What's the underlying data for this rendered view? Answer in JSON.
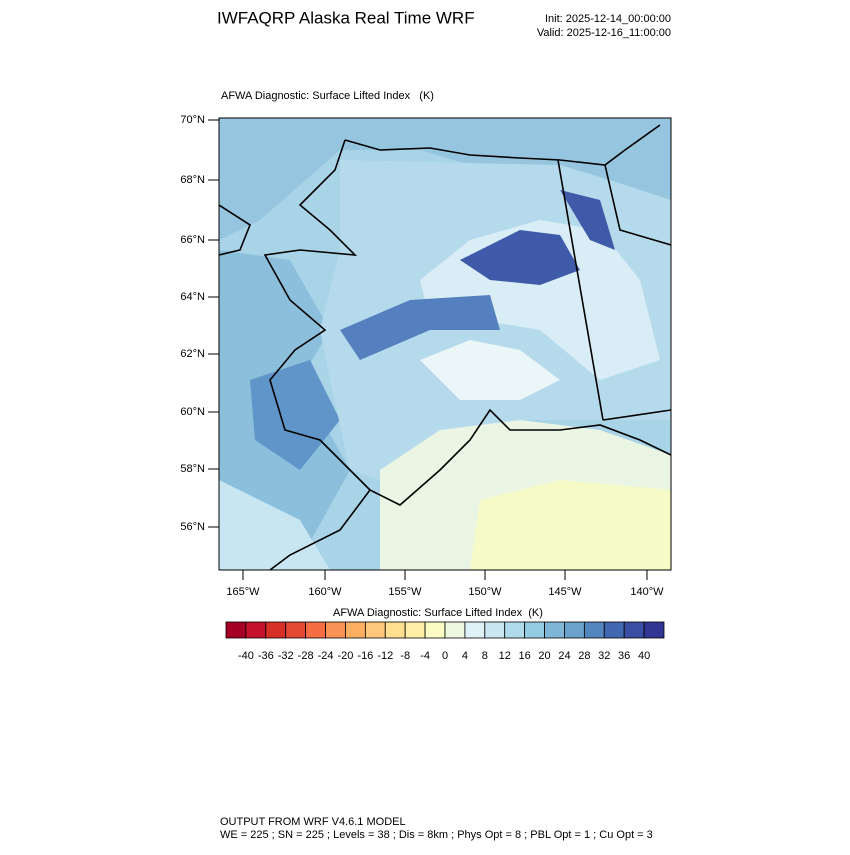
{
  "header": {
    "title": "IWFAQRP Alaska Real Time WRF",
    "init": "Init: 2025-12-14_00:00:00",
    "valid": "Valid: 2025-12-16_11:00:00"
  },
  "map": {
    "title": "AFWA Diagnostic: Surface Lifted Index   (K)",
    "lat_labels": [
      "70°N",
      "68°N",
      "66°N",
      "64°N",
      "62°N",
      "60°N",
      "58°N",
      "56°N"
    ],
    "lon_labels": [
      "165°W",
      "160°W",
      "155°W",
      "150°W",
      "145°W",
      "140°W"
    ]
  },
  "colorbar": {
    "title": "AFWA Diagnostic: Surface Lifted Index  (K)",
    "colors": [
      "#a50026",
      "#c4132a",
      "#d73027",
      "#e34932",
      "#f46d43",
      "#f99355",
      "#fdae61",
      "#fec77a",
      "#fee090",
      "#feeea6",
      "#fbfcc4",
      "#eef8e0",
      "#dff2f7",
      "#c8e7f1",
      "#b0dbeb",
      "#95cae3",
      "#7fb6d8",
      "#6aa2cc",
      "#5386bf",
      "#4268b1",
      "#3a4fa3",
      "#313695"
    ],
    "ticks": [
      -40,
      -36,
      -32,
      -28,
      -24,
      -20,
      -16,
      -12,
      -8,
      -4,
      0,
      4,
      8,
      12,
      16,
      20,
      24,
      28,
      32,
      36,
      40
    ]
  },
  "footer": {
    "line1": "OUTPUT FROM WRF V4.6.1 MODEL",
    "line2": "WE = 225 ; SN = 225 ; Levels = 38 ; Dis = 8km ; Phys Opt = 8 ; PBL Opt = 1 ; Cu Opt = 3"
  }
}
